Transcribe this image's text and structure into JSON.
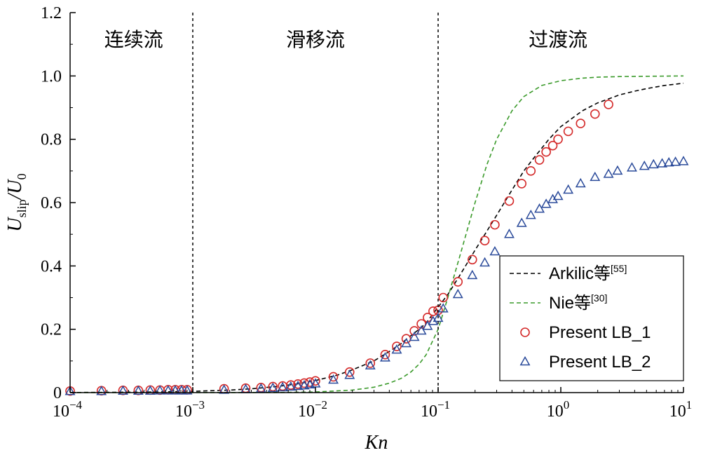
{
  "chart_data": {
    "type": "line",
    "xscale": "log",
    "xlim": [
      0.0001,
      10
    ],
    "ylim": [
      0,
      1.2
    ],
    "xlabel": "Kn",
    "ylabel": {
      "main": "U",
      "sub1": "slip",
      "sep": "/U",
      "sub2": "0"
    },
    "x_ticks": [
      {
        "base": "10",
        "exp": "−4",
        "value": 0.0001
      },
      {
        "base": "10",
        "exp": "−3",
        "value": 0.001
      },
      {
        "base": "10",
        "exp": "−2",
        "value": 0.01
      },
      {
        "base": "10",
        "exp": "−1",
        "value": 0.1
      },
      {
        "base": "10",
        "exp": "0",
        "value": 1
      },
      {
        "base": "10",
        "exp": "1",
        "value": 10
      }
    ],
    "y_ticks": [
      {
        "label": "0",
        "value": 0
      },
      {
        "label": "0.2",
        "value": 0.2
      },
      {
        "label": "0.4",
        "value": 0.4
      },
      {
        "label": "0.6",
        "value": 0.6
      },
      {
        "label": "0.8",
        "value": 0.8
      },
      {
        "label": "1.0",
        "value": 1.0
      },
      {
        "label": "1.2",
        "value": 1.2
      }
    ],
    "regions": [
      {
        "label": "连续流",
        "x": 0.00033
      },
      {
        "label": "滑移流",
        "x": 0.01
      },
      {
        "label": "过渡流",
        "x": 0.95
      }
    ],
    "dividers": [
      0.001,
      0.1
    ],
    "series": [
      {
        "name": "Arkilic等",
        "ref": "[55]",
        "style": "dashed",
        "color": "#000000",
        "x": [
          0.0001,
          0.0002,
          0.0005,
          0.001,
          0.002,
          0.003,
          0.005,
          0.007,
          0.01,
          0.015,
          0.02,
          0.03,
          0.04,
          0.05,
          0.06,
          0.07,
          0.08,
          0.1,
          0.12,
          0.15,
          0.2,
          0.25,
          0.3,
          0.4,
          0.5,
          0.6,
          0.8,
          1,
          1.5,
          2,
          3,
          4,
          5,
          7,
          10
        ],
        "values": [
          0.0004,
          0.0008,
          0.002,
          0.004,
          0.008,
          0.012,
          0.02,
          0.027,
          0.038,
          0.055,
          0.072,
          0.1,
          0.13,
          0.155,
          0.18,
          0.2,
          0.22,
          0.27,
          0.31,
          0.37,
          0.45,
          0.51,
          0.56,
          0.64,
          0.7,
          0.74,
          0.8,
          0.84,
          0.89,
          0.915,
          0.94,
          0.952,
          0.96,
          0.97,
          0.977
        ]
      },
      {
        "name": "Nie等",
        "ref": "[30]",
        "style": "dashed",
        "color": "#3a9a2a",
        "x": [
          0.0001,
          0.001,
          0.005,
          0.01,
          0.02,
          0.03,
          0.04,
          0.05,
          0.06,
          0.07,
          0.08,
          0.1,
          0.12,
          0.15,
          0.2,
          0.25,
          0.3,
          0.4,
          0.5,
          0.7,
          1,
          1.5,
          2,
          3,
          5,
          10
        ],
        "values": [
          0,
          0,
          0.0005,
          0.002,
          0.008,
          0.017,
          0.03,
          0.045,
          0.065,
          0.09,
          0.12,
          0.2,
          0.3,
          0.43,
          0.6,
          0.72,
          0.8,
          0.89,
          0.935,
          0.97,
          0.985,
          0.993,
          0.996,
          0.998,
          0.999,
          1.0
        ]
      },
      {
        "name": "Present LB_1",
        "style": "circle",
        "color": "#d42a2a",
        "x": [
          0.0001,
          0.00018,
          0.00027,
          0.00036,
          0.00045,
          0.00054,
          0.00063,
          0.00072,
          0.00081,
          0.0009,
          0.0018,
          0.0027,
          0.0036,
          0.0045,
          0.0054,
          0.0063,
          0.0072,
          0.0081,
          0.009,
          0.01,
          0.014,
          0.019,
          0.028,
          0.037,
          0.046,
          0.055,
          0.064,
          0.073,
          0.082,
          0.091,
          0.1,
          0.11,
          0.145,
          0.19,
          0.24,
          0.29,
          0.38,
          0.48,
          0.57,
          0.67,
          0.76,
          0.86,
          0.95,
          1.15,
          1.45,
          1.9,
          2.45
        ],
        "values": [
          0.005,
          0.006,
          0.007,
          0.007,
          0.008,
          0.008,
          0.009,
          0.009,
          0.009,
          0.009,
          0.012,
          0.014,
          0.016,
          0.019,
          0.021,
          0.024,
          0.027,
          0.03,
          0.033,
          0.037,
          0.05,
          0.065,
          0.093,
          0.12,
          0.146,
          0.17,
          0.195,
          0.217,
          0.237,
          0.257,
          0.26,
          0.3,
          0.35,
          0.42,
          0.48,
          0.53,
          0.605,
          0.66,
          0.7,
          0.735,
          0.76,
          0.78,
          0.8,
          0.825,
          0.85,
          0.88,
          0.91
        ]
      },
      {
        "name": "Present LB_2",
        "style": "triangle",
        "color": "#2a4a9a",
        "x": [
          0.0001,
          0.00018,
          0.00027,
          0.00036,
          0.00045,
          0.00054,
          0.00063,
          0.00072,
          0.00081,
          0.0009,
          0.0018,
          0.0027,
          0.0036,
          0.0045,
          0.0054,
          0.0063,
          0.0072,
          0.0081,
          0.009,
          0.01,
          0.014,
          0.019,
          0.028,
          0.037,
          0.046,
          0.055,
          0.064,
          0.073,
          0.082,
          0.091,
          0.1,
          0.11,
          0.145,
          0.19,
          0.24,
          0.29,
          0.38,
          0.48,
          0.57,
          0.67,
          0.76,
          0.86,
          0.95,
          1.15,
          1.45,
          1.9,
          2.45,
          2.9,
          3.8,
          4.8,
          5.7,
          6.7,
          7.6,
          8.6,
          10
        ],
        "values": [
          0.004,
          0.004,
          0.005,
          0.005,
          0.005,
          0.006,
          0.006,
          0.006,
          0.006,
          0.006,
          0.008,
          0.01,
          0.012,
          0.014,
          0.016,
          0.018,
          0.02,
          0.022,
          0.025,
          0.028,
          0.04,
          0.055,
          0.085,
          0.11,
          0.135,
          0.155,
          0.175,
          0.195,
          0.21,
          0.225,
          0.235,
          0.265,
          0.31,
          0.37,
          0.41,
          0.445,
          0.5,
          0.535,
          0.56,
          0.58,
          0.595,
          0.61,
          0.62,
          0.64,
          0.66,
          0.68,
          0.69,
          0.7,
          0.71,
          0.715,
          0.72,
          0.723,
          0.726,
          0.728,
          0.73
        ]
      }
    ],
    "legend": {
      "position": "bottom-right"
    }
  }
}
